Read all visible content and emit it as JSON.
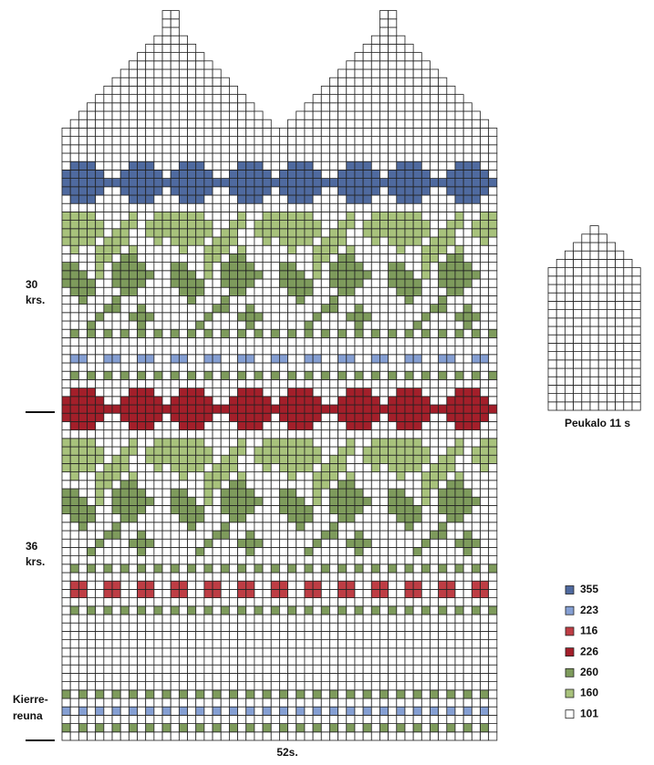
{
  "row_labels": [
    {
      "lines": [
        "30",
        "krs."
      ]
    },
    {
      "lines": [
        "36",
        "krs."
      ]
    },
    {
      "lines": [
        "Kierre-",
        "reuna"
      ]
    }
  ],
  "width_label": "52s.",
  "thumb_label": "Peukalo 11 s",
  "legend": [
    {
      "code": "355",
      "color": "#4f6a9f"
    },
    {
      "code": "223",
      "color": "#859fd3"
    },
    {
      "code": "116",
      "color": "#be3d44"
    },
    {
      "code": "226",
      "color": "#a31f2a"
    },
    {
      "code": "260",
      "color": "#7e9b5c"
    },
    {
      "code": "160",
      "color": "#a8c27c"
    },
    {
      "code": "101",
      "color": "#ffffff"
    }
  ]
}
